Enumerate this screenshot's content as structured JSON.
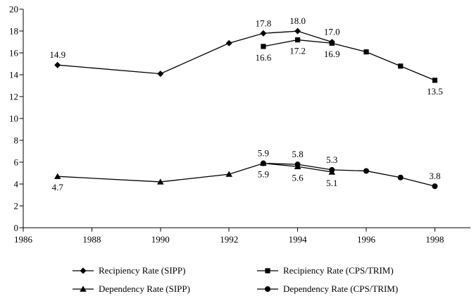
{
  "chart_data": {
    "type": "line",
    "title": "",
    "xlabel": "",
    "ylabel": "",
    "xlim": [
      1986,
      1999
    ],
    "ylim": [
      0,
      20
    ],
    "x_ticks": [
      1986,
      1988,
      1990,
      1992,
      1994,
      1996,
      1998
    ],
    "y_ticks": [
      0,
      2,
      4,
      6,
      8,
      10,
      12,
      14,
      16,
      18,
      20
    ],
    "grid": false,
    "legend_position": "bottom",
    "series": [
      {
        "name": "Recipiency Rate (SIPP)",
        "marker": "diamond",
        "color": "#000000",
        "x": [
          1987,
          1990,
          1992,
          1993,
          1994,
          1995
        ],
        "y": [
          14.9,
          14.1,
          16.9,
          17.8,
          18.0,
          17.0
        ],
        "labels": [
          {
            "x": 1987,
            "text": "14.9",
            "pos": "above"
          },
          {
            "x": 1993,
            "text": "17.8",
            "pos": "above"
          },
          {
            "x": 1994,
            "text": "18.0",
            "pos": "above"
          },
          {
            "x": 1995,
            "text": "17.0",
            "pos": "above"
          }
        ]
      },
      {
        "name": "Recipiency Rate (CPS/TRIM)",
        "marker": "square",
        "color": "#000000",
        "x": [
          1993,
          1994,
          1995,
          1996,
          1997,
          1998
        ],
        "y": [
          16.6,
          17.2,
          16.9,
          16.1,
          14.8,
          13.5
        ],
        "labels": [
          {
            "x": 1993,
            "text": "16.6",
            "pos": "below"
          },
          {
            "x": 1994,
            "text": "17.2",
            "pos": "below"
          },
          {
            "x": 1995,
            "text": "16.9",
            "pos": "below"
          },
          {
            "x": 1998,
            "text": "13.5",
            "pos": "below"
          }
        ]
      },
      {
        "name": "Dependency Rate (SIPP)",
        "marker": "triangle",
        "color": "#000000",
        "x": [
          1987,
          1990,
          1992,
          1993,
          1994,
          1995
        ],
        "y": [
          4.7,
          4.2,
          4.9,
          5.9,
          5.6,
          5.1
        ],
        "labels": [
          {
            "x": 1987,
            "text": "4.7",
            "pos": "below"
          },
          {
            "x": 1993,
            "text": "5.9",
            "pos": "below"
          },
          {
            "x": 1994,
            "text": "5.6",
            "pos": "below"
          },
          {
            "x": 1995,
            "text": "5.1",
            "pos": "below"
          }
        ]
      },
      {
        "name": "Dependency Rate (CPS/TRIM)",
        "marker": "circle",
        "color": "#000000",
        "x": [
          1993,
          1994,
          1995,
          1996,
          1997,
          1998
        ],
        "y": [
          5.9,
          5.8,
          5.3,
          5.2,
          4.6,
          3.8
        ],
        "labels": [
          {
            "x": 1993,
            "text": "5.9",
            "pos": "above"
          },
          {
            "x": 1994,
            "text": "5.8",
            "pos": "above"
          },
          {
            "x": 1995,
            "text": "5.3",
            "pos": "above"
          },
          {
            "x": 1998,
            "text": "3.8",
            "pos": "above"
          }
        ]
      }
    ]
  },
  "colors": {
    "axis": "#000000",
    "line": "#000000",
    "text": "#000000",
    "background": "#ffffff"
  }
}
